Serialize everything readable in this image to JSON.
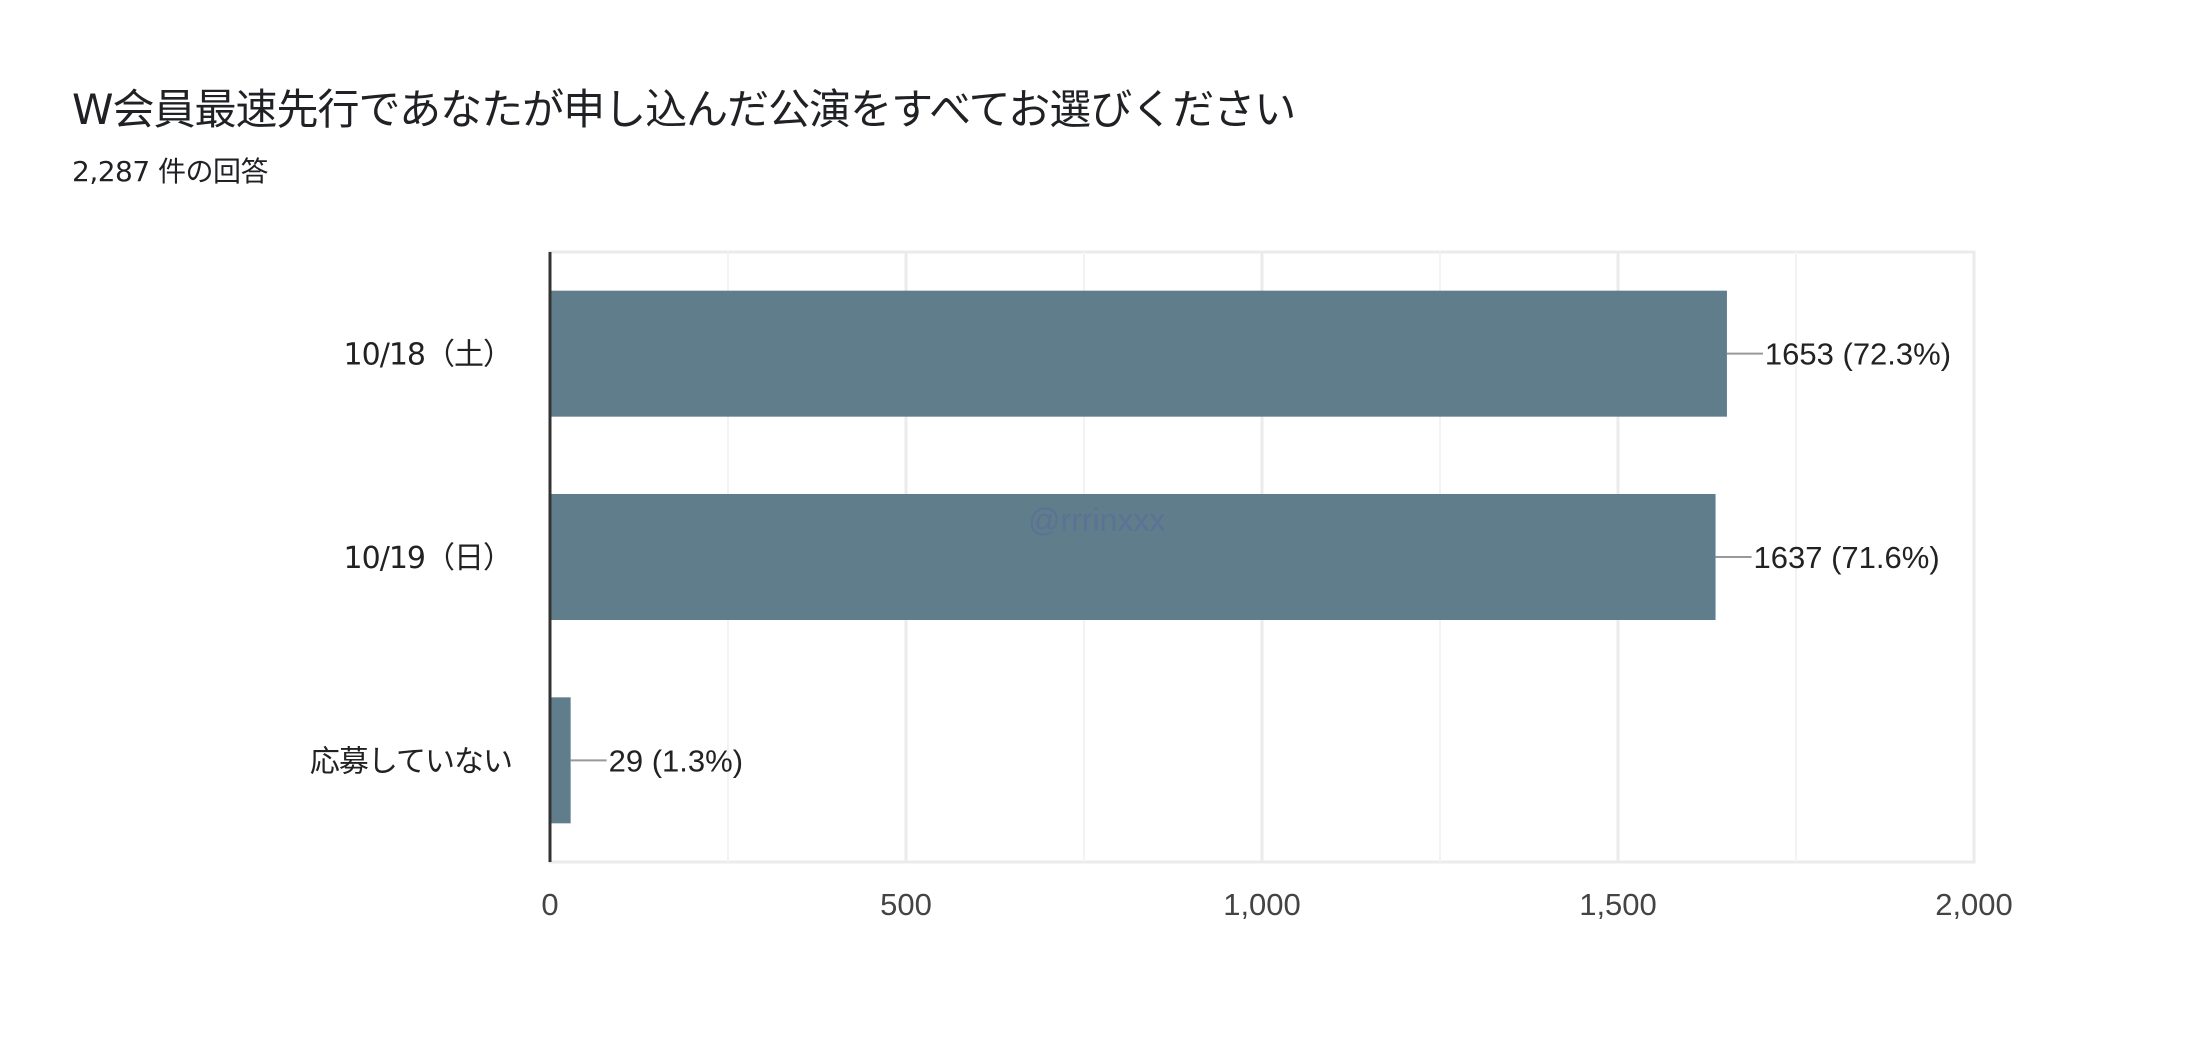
{
  "chart_data": {
    "type": "bar",
    "orientation": "horizontal",
    "title": "W会員最速先行であなたが申し込んだ公演をすべてお選びください",
    "subtitle": "2,287 件の回答",
    "categories": [
      "10/18（土）",
      "10/19（日）",
      "応募していない"
    ],
    "values": [
      1653,
      1637,
      29
    ],
    "data_labels": [
      "1653 (72.3%)",
      "1637 (71.6%)",
      "29 (1.3%)"
    ],
    "xlim": [
      0,
      2000
    ],
    "x_ticks": [
      0,
      500,
      1000,
      1500,
      2000
    ],
    "x_tick_labels": [
      "0",
      "500",
      "1,000",
      "1,500",
      "2,000"
    ],
    "minor_gridlines": [
      250,
      750,
      1250,
      1750
    ],
    "grid": true,
    "bar_color": "#607d8b",
    "watermark": "@rrrinxxx"
  }
}
